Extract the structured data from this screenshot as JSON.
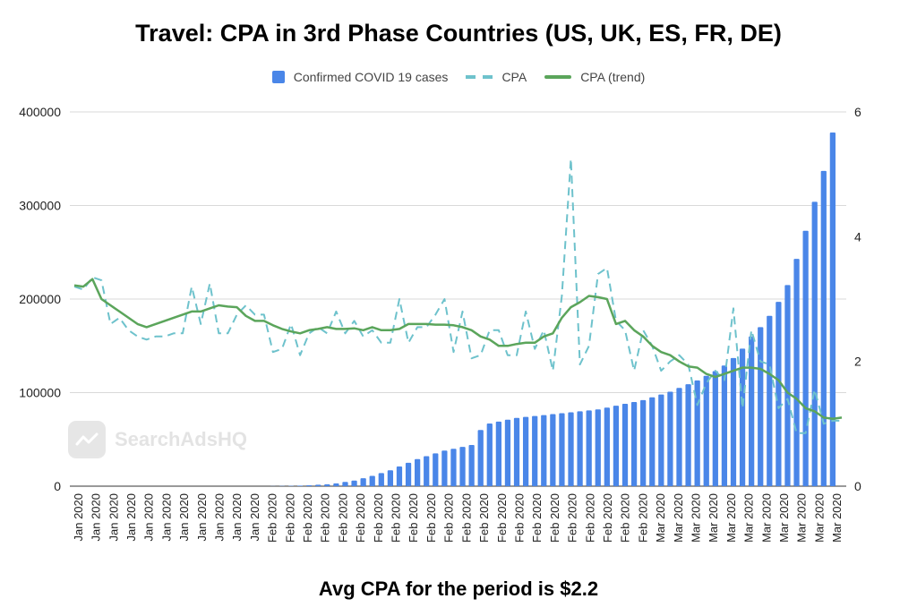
{
  "chart_data": {
    "type": "bar",
    "title": "Travel: CPA in 3rd Phase Countries (US, UK, ES, FR, DE)",
    "footer": "Avg CPA for the period is $2.2",
    "watermark": "SearchAdsHQ",
    "grid": true,
    "legend_position": "top",
    "categories": [
      "Jan 2020",
      "Jan 2020",
      "Jan 2020",
      "Jan 2020",
      "Jan 2020",
      "Jan 2020",
      "Jan 2020",
      "Jan 2020",
      "Jan 2020",
      "Jan 2020",
      "Jan 2020",
      "Jan 2020",
      "Jan 2020",
      "Jan 2020",
      "Jan 2020",
      "Jan 2020",
      "Jan 2020",
      "Jan 2020",
      "Jan 2020",
      "Jan 2020",
      "Jan 2020",
      "Jan 2020",
      "Feb 2020",
      "Feb 2020",
      "Feb 2020",
      "Feb 2020",
      "Feb 2020",
      "Feb 2020",
      "Feb 2020",
      "Feb 2020",
      "Feb 2020",
      "Feb 2020",
      "Feb 2020",
      "Feb 2020",
      "Feb 2020",
      "Feb 2020",
      "Feb 2020",
      "Feb 2020",
      "Feb 2020",
      "Feb 2020",
      "Feb 2020",
      "Feb 2020",
      "Feb 2020",
      "Feb 2020",
      "Feb 2020",
      "Feb 2020",
      "Feb 2020",
      "Feb 2020",
      "Feb 2020",
      "Feb 2020",
      "Feb 2020",
      "Feb 2020",
      "Mar 2020",
      "Mar 2020",
      "Mar 2020",
      "Mar 2020",
      "Mar 2020",
      "Mar 2020",
      "Mar 2020",
      "Mar 2020",
      "Mar 2020",
      "Mar 2020",
      "Mar 2020",
      "Mar 2020",
      "Mar 2020",
      "Mar 2020",
      "Mar 2020",
      "Mar 2020",
      "Mar 2020",
      "Mar 2020",
      "Mar 2020",
      "Mar 2020",
      "Mar 2020",
      "Mar 2020",
      "Mar 2020",
      "Mar 2020",
      "Mar 2020",
      "Mar 2020",
      "Mar 2020",
      "Mar 2020",
      "Mar 2020",
      "Mar 2020",
      "Mar 2020",
      "Mar 2020",
      "Mar 2020",
      "Mar 2020"
    ],
    "x_tick_labels": [
      "Jan 2020",
      "Jan 2020",
      "Jan 2020",
      "Jan 2020",
      "Jan 2020",
      "Jan 2020",
      "Jan 2020",
      "Jan 2020",
      "Jan 2020",
      "Jan 2020",
      "Jan 2020",
      "Feb 2020",
      "Feb 2020",
      "Feb 2020",
      "Feb 2020",
      "Feb 2020",
      "Feb 2020",
      "Feb 2020",
      "Feb 2020",
      "Feb 2020",
      "Feb 2020",
      "Feb 2020",
      "Feb 2020",
      "Feb 2020",
      "Feb 2020",
      "Feb 2020",
      "Feb 2020",
      "Feb 2020",
      "Feb 2020",
      "Feb 2020",
      "Feb 2020",
      "Feb 2020",
      "Feb 2020",
      "Mar 2020",
      "Mar 2020",
      "Mar 2020",
      "Mar 2020",
      "Mar 2020",
      "Mar 2020",
      "Mar 2020",
      "Mar 2020",
      "Mar 2020",
      "Mar 2020",
      "Mar 2020"
    ],
    "y_left": {
      "ticks": [
        0,
        100000,
        200000,
        300000,
        400000
      ],
      "ylim": [
        0,
        400000
      ]
    },
    "y_right": {
      "ticks": [
        0,
        2,
        4,
        6
      ],
      "ylim": [
        0,
        6
      ]
    },
    "series": [
      {
        "name": "Confirmed COVID 19 cases",
        "axis": "left",
        "kind": "bar",
        "color": "#4a86e8",
        "values": [
          0,
          0,
          0,
          0,
          0,
          0,
          0,
          0,
          0,
          0,
          0,
          0,
          0,
          0,
          0,
          0,
          0,
          0,
          0,
          0,
          0,
          0,
          100,
          200,
          300,
          600,
          1000,
          1500,
          2000,
          3000,
          4500,
          6000,
          8500,
          11000,
          14000,
          17000,
          21000,
          25000,
          29000,
          32000,
          35000,
          38000,
          40000,
          42000,
          44000,
          60000,
          67000,
          69000,
          71000,
          73000,
          74000,
          75000,
          76000,
          77000,
          78000,
          79000,
          80000,
          81000,
          82000,
          84000,
          86000,
          88000,
          90000,
          92000,
          95000,
          98000,
          101000,
          105000,
          109000,
          113000,
          118000,
          123000,
          129000,
          137000,
          147000,
          160000,
          170000,
          182000,
          197000,
          215000,
          243000,
          273000,
          304000,
          337000,
          378000,
          0
        ]
      },
      {
        "name": "CPA",
        "axis": "right",
        "kind": "dashed-line",
        "color": "#6ec2cc",
        "values": [
          3.2,
          3.15,
          3.35,
          3.3,
          2.6,
          2.7,
          2.5,
          2.4,
          2.35,
          2.4,
          2.4,
          2.45,
          2.45,
          3.2,
          2.6,
          3.25,
          2.45,
          2.45,
          2.75,
          2.9,
          2.75,
          2.75,
          2.15,
          2.2,
          2.6,
          2.1,
          2.45,
          2.55,
          2.45,
          2.8,
          2.45,
          2.65,
          2.4,
          2.5,
          2.3,
          2.3,
          3.0,
          2.3,
          2.55,
          2.55,
          2.75,
          3.0,
          2.15,
          2.8,
          2.05,
          2.1,
          2.5,
          2.5,
          2.1,
          2.1,
          2.8,
          2.2,
          2.5,
          1.85,
          3.05,
          5.25,
          1.95,
          2.25,
          3.4,
          3.5,
          2.65,
          2.5,
          1.85,
          2.5,
          2.25,
          1.85,
          2.0,
          2.1,
          1.95,
          1.3,
          1.65,
          1.85,
          1.7,
          2.85,
          1.25,
          2.5,
          2.0,
          1.95,
          1.25,
          1.4,
          0.85,
          0.85,
          1.55,
          1.0,
          1.05,
          1.05
        ]
      },
      {
        "name": "CPA (trend)",
        "axis": "right",
        "kind": "line",
        "color": "#5ba55b",
        "values": [
          3.22,
          3.2,
          3.32,
          3.0,
          2.9,
          2.8,
          2.7,
          2.6,
          2.55,
          2.6,
          2.65,
          2.7,
          2.75,
          2.8,
          2.8,
          2.85,
          2.9,
          2.88,
          2.87,
          2.73,
          2.65,
          2.65,
          2.58,
          2.52,
          2.48,
          2.45,
          2.5,
          2.52,
          2.55,
          2.52,
          2.52,
          2.53,
          2.5,
          2.55,
          2.5,
          2.5,
          2.52,
          2.6,
          2.6,
          2.6,
          2.59,
          2.59,
          2.58,
          2.55,
          2.5,
          2.4,
          2.35,
          2.25,
          2.25,
          2.28,
          2.3,
          2.3,
          2.4,
          2.45,
          2.7,
          2.87,
          2.95,
          3.05,
          3.03,
          3.0,
          2.6,
          2.65,
          2.5,
          2.4,
          2.25,
          2.15,
          2.1,
          2.0,
          1.92,
          1.9,
          1.8,
          1.75,
          1.8,
          1.85,
          1.9,
          1.9,
          1.88,
          1.8,
          1.7,
          1.5,
          1.4,
          1.25,
          1.2,
          1.1,
          1.08,
          1.1
        ]
      }
    ]
  },
  "legend": {
    "items": [
      {
        "label": "Confirmed COVID 19 cases",
        "color": "#4a86e8",
        "icon": "bar-swatch"
      },
      {
        "label": "CPA",
        "color": "#6ec2cc",
        "icon": "dashed-line-swatch"
      },
      {
        "label": "CPA (trend)",
        "color": "#5ba55b",
        "icon": "line-swatch"
      }
    ]
  }
}
